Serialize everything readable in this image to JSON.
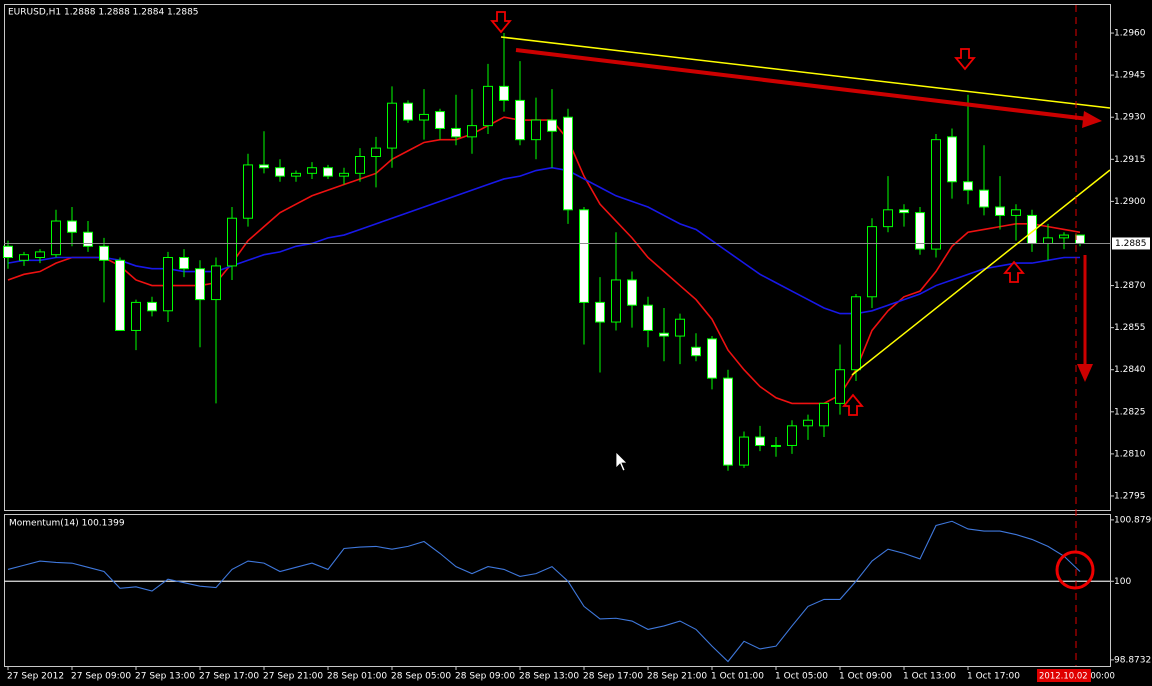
{
  "chart_data": [
    {
      "type": "candlestick",
      "title": "EURUSD,H1 1.2888 1.2888 1.2884 1.2885",
      "categories": [
        "27 Sep 2012",
        null,
        null,
        null,
        "27 Sep 09:00",
        null,
        null,
        null,
        "27 Sep 13:00",
        null,
        null,
        null,
        "27 Sep 17:00",
        null,
        null,
        null,
        "27 Sep 21:00",
        null,
        null,
        null,
        "28 Sep 01:00",
        null,
        null,
        null,
        "28 Sep 05:00",
        null,
        null,
        null,
        "28 Sep 09:00",
        null,
        null,
        null,
        "28 Sep 13:00",
        null,
        null,
        null,
        "28 Sep 17:00",
        null,
        null,
        null,
        "28 Sep 21:00",
        null,
        null,
        null,
        "1 Oct 01:00",
        null,
        null,
        null,
        "1 Oct 05:00",
        null,
        null,
        null,
        "1 Oct 09:00",
        null,
        null,
        null,
        "1 Oct 13:00",
        null,
        null,
        null,
        "1 Oct 17:00",
        null,
        null,
        null,
        null,
        null,
        null,
        null
      ],
      "open": [
        1.2884,
        1.2879,
        1.288,
        1.2881,
        1.2893,
        1.2889,
        1.2884,
        1.2879,
        1.2854,
        1.2864,
        1.2861,
        1.288,
        1.2876,
        1.2865,
        1.2877,
        1.2894,
        1.2913,
        1.2912,
        1.2909,
        1.291,
        1.2912,
        1.2909,
        1.291,
        1.2916,
        1.2919,
        1.2935,
        1.2929,
        1.2932,
        1.2926,
        1.2923,
        1.2927,
        1.2941,
        1.2936,
        1.2922,
        1.2929,
        1.293,
        1.2897,
        1.2864,
        1.2857,
        1.2872,
        1.2863,
        1.2853,
        1.2852,
        1.2848,
        1.2851,
        1.2837,
        1.2806,
        1.2816,
        1.2813,
        1.2813,
        1.282,
        1.282,
        1.2828,
        1.284,
        1.2866,
        1.2891,
        1.2897,
        1.2896,
        1.2883,
        1.2923,
        1.2907,
        1.2904,
        1.2898,
        1.2895,
        1.2895,
        1.2885,
        1.2887,
        1.2888
      ],
      "high": [
        1.2886,
        1.2882,
        1.2883,
        1.2897,
        1.2898,
        1.2893,
        1.2887,
        1.288,
        1.2865,
        1.2866,
        1.2882,
        1.2883,
        1.2879,
        1.288,
        1.2898,
        1.2917,
        1.2925,
        1.2915,
        1.2911,
        1.2914,
        1.2913,
        1.2912,
        1.2919,
        1.2923,
        1.2941,
        1.2936,
        1.294,
        1.2933,
        1.2938,
        1.294,
        1.2949,
        1.296,
        1.295,
        1.2937,
        1.294,
        1.2933,
        1.2898,
        1.2873,
        1.2889,
        1.2875,
        1.2866,
        1.2862,
        1.286,
        1.2853,
        1.2852,
        1.284,
        1.2818,
        1.282,
        1.2816,
        1.2822,
        1.2824,
        1.2828,
        1.2849,
        1.2867,
        1.2894,
        1.2909,
        1.2899,
        1.2898,
        1.2924,
        1.2926,
        1.2938,
        1.292,
        1.2909,
        1.2899,
        1.2897,
        1.2892,
        1.2889,
        1.2888
      ],
      "low": [
        1.2876,
        1.2877,
        1.2878,
        1.288,
        1.2884,
        1.2882,
        1.2864,
        1.2854,
        1.2847,
        1.2859,
        1.2857,
        1.2873,
        1.2848,
        1.2828,
        1.2872,
        1.2891,
        1.291,
        1.2907,
        1.2907,
        1.2908,
        1.2908,
        1.2906,
        1.2907,
        1.2905,
        1.2912,
        1.2928,
        1.2922,
        1.2922,
        1.292,
        1.2917,
        1.2924,
        1.2932,
        1.292,
        1.2915,
        1.2912,
        1.2892,
        1.2849,
        1.2839,
        1.2854,
        1.2855,
        1.2848,
        1.2843,
        1.2842,
        1.2843,
        1.2833,
        1.2804,
        1.2805,
        1.2811,
        1.2809,
        1.281,
        1.2815,
        1.2816,
        1.2824,
        1.2836,
        1.2862,
        1.2889,
        1.2891,
        1.2881,
        1.288,
        1.2901,
        1.2899,
        1.2895,
        1.289,
        1.2886,
        1.2882,
        1.2879,
        1.2883,
        1.2884
      ],
      "close": [
        1.288,
        1.2881,
        1.2882,
        1.2893,
        1.2889,
        1.2884,
        1.2879,
        1.2854,
        1.2864,
        1.2861,
        1.288,
        1.2876,
        1.2865,
        1.2877,
        1.2894,
        1.2913,
        1.2912,
        1.2909,
        1.291,
        1.2912,
        1.2909,
        1.291,
        1.2916,
        1.2919,
        1.2935,
        1.2929,
        1.2931,
        1.2926,
        1.2923,
        1.2927,
        1.2941,
        1.2936,
        1.2922,
        1.2929,
        1.2925,
        1.2897,
        1.2864,
        1.2857,
        1.2872,
        1.2863,
        1.2854,
        1.2852,
        1.2858,
        1.2845,
        1.2837,
        1.2806,
        1.2816,
        1.2813,
        1.2813,
        1.282,
        1.2822,
        1.2828,
        1.284,
        1.2866,
        1.2891,
        1.2897,
        1.2896,
        1.2883,
        1.2922,
        1.2907,
        1.2904,
        1.2898,
        1.2895,
        1.2897,
        1.2885,
        1.2887,
        1.2888,
        1.2885
      ],
      "bull_color": "#000000",
      "bear_color": "#ffffff",
      "outline_color": "#00ff00",
      "overlays": [
        {
          "color": "#ee1111",
          "values": [
            1.2872,
            1.2874,
            1.2875,
            1.2878,
            1.288,
            1.288,
            1.288,
            1.2877,
            1.2872,
            1.287,
            1.287,
            1.287,
            1.287,
            1.2871,
            1.2878,
            1.2886,
            1.2891,
            1.2896,
            1.2899,
            1.2902,
            1.2904,
            1.2906,
            1.2908,
            1.291,
            1.2915,
            1.2918,
            1.2921,
            1.2922,
            1.2922,
            1.2924,
            1.2927,
            1.293,
            1.2929,
            1.2929,
            1.2929,
            1.2922,
            1.2909,
            1.2899,
            1.2893,
            1.2887,
            1.288,
            1.2875,
            1.287,
            1.2865,
            1.2858,
            1.2847,
            1.284,
            1.2834,
            1.283,
            1.2828,
            1.2828,
            1.2828,
            1.2831,
            1.284,
            1.2854,
            1.2861,
            1.2866,
            1.2868,
            1.2875,
            1.2884,
            1.2889,
            1.289,
            1.2891,
            1.2892,
            1.2892,
            1.2891,
            1.289,
            1.2889
          ]
        },
        {
          "color": "#1818e8",
          "values": [
            1.2878,
            1.2879,
            1.2879,
            1.288,
            1.288,
            1.288,
            1.288,
            1.2879,
            1.2877,
            1.2876,
            1.2876,
            1.2875,
            1.2875,
            1.2875,
            1.2877,
            1.2879,
            1.2881,
            1.2882,
            1.2884,
            1.2885,
            1.2887,
            1.2888,
            1.289,
            1.2892,
            1.2894,
            1.2896,
            1.2898,
            1.29,
            1.2902,
            1.2904,
            1.2906,
            1.2908,
            1.2909,
            1.2911,
            1.2912,
            1.2911,
            1.2908,
            1.2905,
            1.2902,
            1.29,
            1.2898,
            1.2895,
            1.2892,
            1.289,
            1.2886,
            1.2882,
            1.2878,
            1.2874,
            1.2871,
            1.2868,
            1.2865,
            1.2862,
            1.286,
            1.286,
            1.2861,
            1.2863,
            1.2865,
            1.2867,
            1.287,
            1.2872,
            1.2874,
            1.2876,
            1.2877,
            1.2878,
            1.2878,
            1.2879,
            1.288,
            1.288
          ]
        }
      ],
      "ylim": [
        1.279,
        1.297
      ],
      "yticks": [
        {
          "value": 1.296,
          "label": "1.2960"
        },
        1.2945,
        {
          "value": 1.293,
          "label": "1.2930"
        },
        1.2915,
        {
          "value": 1.29,
          "label": "1.2900"
        },
        {
          "value": 1.287,
          "label": "1.2870"
        },
        1.2855,
        {
          "value": 1.284,
          "label": "1.2840"
        },
        1.2825,
        {
          "value": 1.281,
          "label": "1.2810"
        },
        1.2795
      ],
      "grid": false,
      "bid": {
        "value": 1.2885,
        "label": "1.2885"
      },
      "cursor_time": "2012.10.02 00:00"
    },
    {
      "type": "line",
      "title": "Momentum(14) 100.1399",
      "values": [
        100.17,
        100.23,
        100.29,
        100.27,
        100.26,
        100.2,
        100.14,
        99.9,
        99.92,
        99.86,
        100.03,
        99.98,
        99.93,
        99.91,
        100.17,
        100.29,
        100.26,
        100.14,
        100.2,
        100.26,
        100.17,
        100.47,
        100.49,
        100.5,
        100.46,
        100.5,
        100.57,
        100.4,
        100.21,
        100.11,
        100.21,
        100.17,
        100.07,
        100.11,
        100.21,
        100.0,
        99.64,
        99.46,
        99.47,
        99.43,
        99.31,
        99.36,
        99.43,
        99.31,
        99.07,
        98.85,
        99.14,
        99.03,
        99.07,
        99.36,
        99.64,
        99.74,
        99.74,
        100.0,
        100.29,
        100.46,
        100.4,
        100.32,
        100.8,
        100.86,
        100.75,
        100.72,
        100.72,
        100.67,
        100.6,
        100.5,
        100.36,
        100.1399
      ],
      "color": "#3f78dc",
      "ylim": [
        98.8,
        100.95
      ],
      "yticks": [
        100.8799,
        100,
        98.8732
      ],
      "levels": [
        100
      ],
      "grid": false
    }
  ]
}
